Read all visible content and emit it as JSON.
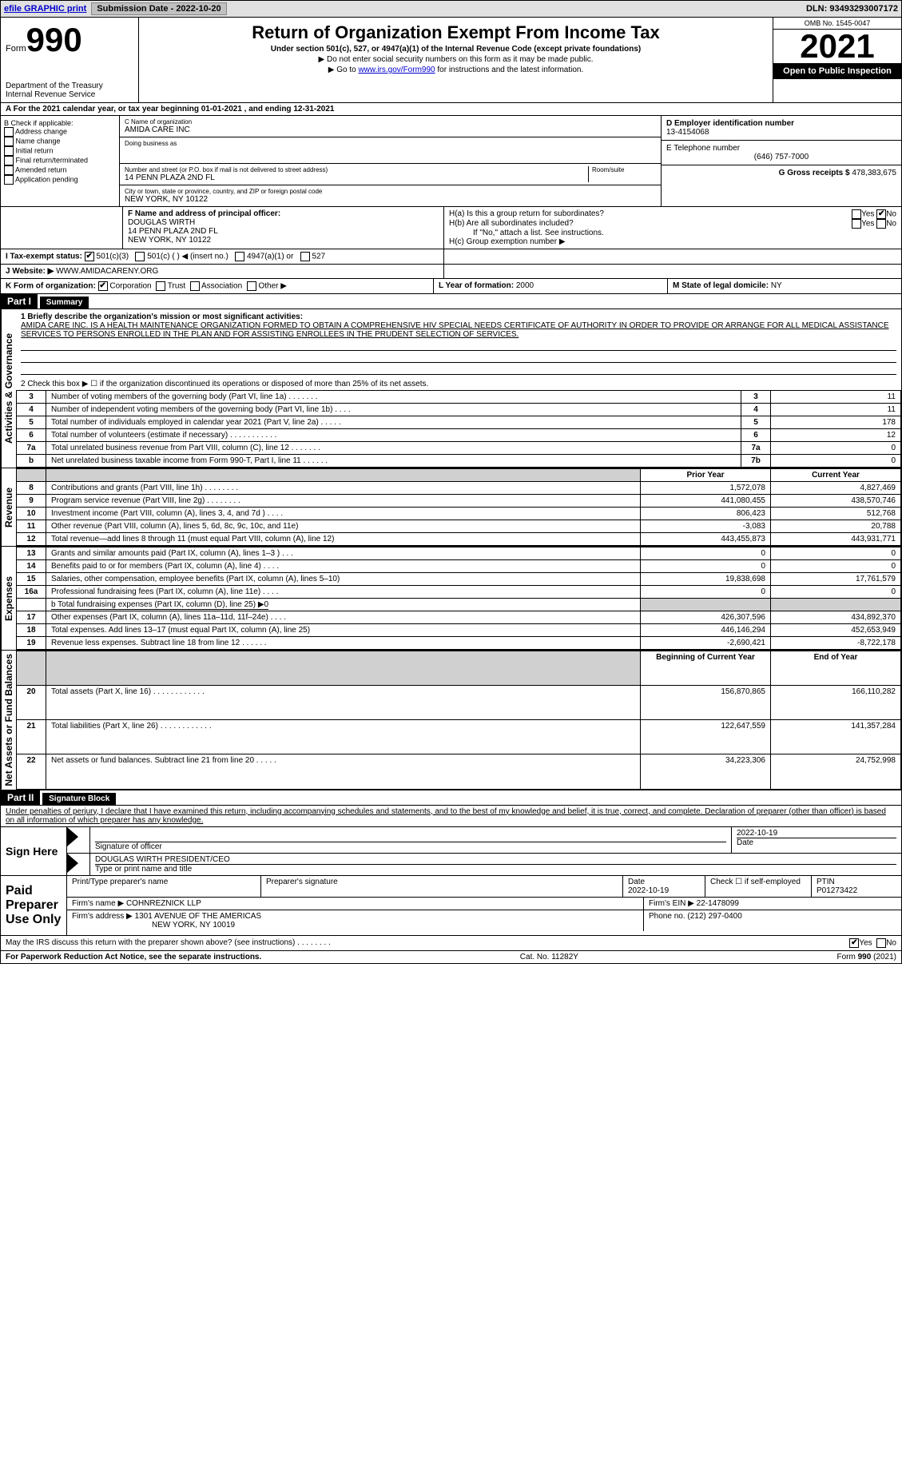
{
  "top_bar": {
    "efile_label": "efile GRAPHIC print",
    "submission_label": "Submission Date - 2022-10-20",
    "dln_label": "DLN: 93493293007172"
  },
  "header": {
    "form_word": "Form",
    "form_number": "990",
    "dept1": "Department of the Treasury",
    "dept2": "Internal Revenue Service",
    "title": "Return of Organization Exempt From Income Tax",
    "subtitle": "Under section 501(c), 527, or 4947(a)(1) of the Internal Revenue Code (except private foundations)",
    "note1": "▶ Do not enter social security numbers on this form as it may be made public.",
    "note2": "▶ Go to www.irs.gov/Form990 for instructions and the latest information.",
    "link_text": "www.irs.gov/Form990",
    "omb": "OMB No. 1545-0047",
    "year": "2021",
    "open_public": "Open to Public Inspection"
  },
  "period": {
    "a_label": "A For the 2021 calendar year, or tax year beginning 01-01-2021    , and ending 12-31-2021"
  },
  "box_b": {
    "header": "B Check if applicable:",
    "addr_change": "Address change",
    "name_change": "Name change",
    "initial": "Initial return",
    "final": "Final return/terminated",
    "amended": "Amended return",
    "app_pending": "Application pending"
  },
  "box_c": {
    "name_label": "C Name of organization",
    "name": "AMIDA CARE INC",
    "dba_label": "Doing business as",
    "dba": "",
    "street_label": "Number and street (or P.O. box if mail is not delivered to street address)",
    "room_label": "Room/suite",
    "street": "14 PENN PLAZA 2ND FL",
    "city_label": "City or town, state or province, country, and ZIP or foreign postal code",
    "city": "NEW YORK, NY  10122"
  },
  "box_d": {
    "label": "D Employer identification number",
    "value": "13-4154068"
  },
  "box_e": {
    "label": "E Telephone number",
    "value": "(646) 757-7000"
  },
  "box_g": {
    "label": "G Gross receipts $",
    "value": "478,383,675"
  },
  "box_f": {
    "label": "F  Name and address of principal officer:",
    "name": "DOUGLAS WIRTH",
    "line1": "14 PENN PLAZA 2ND FL",
    "line2": "NEW YORK, NY  10122"
  },
  "box_h": {
    "a_label": "H(a)  Is this a group return for subordinates?",
    "b_label": "H(b)  Are all subordinates included?",
    "b_note": "If \"No,\" attach a list. See instructions.",
    "c_label": "H(c)  Group exemption number ▶",
    "yes": "Yes",
    "no": "No"
  },
  "box_i": {
    "label": "I    Tax-exempt status:",
    "opt1": "501(c)(3)",
    "opt2": "501(c) (    ) ◀ (insert no.)",
    "opt3": "4947(a)(1) or",
    "opt4": "527"
  },
  "box_j": {
    "label": "J    Website: ▶",
    "value": "WWW.AMIDACARENY.ORG"
  },
  "box_k": {
    "label": "K Form of organization:",
    "corp": "Corporation",
    "trust": "Trust",
    "assoc": "Association",
    "other": "Other ▶"
  },
  "box_l": {
    "label": "L Year of formation:",
    "value": "2000"
  },
  "box_m": {
    "label": "M State of legal domicile:",
    "value": "NY"
  },
  "part1": {
    "header": "Part I",
    "title": "Summary"
  },
  "side_labels": {
    "activities": "Activities & Governance",
    "revenue": "Revenue",
    "expenses": "Expenses",
    "netassets": "Net Assets or Fund Balances"
  },
  "summary": {
    "line1_label": "1  Briefly describe the organization's mission or most significant activities:",
    "mission": "AMIDA CARE INC. IS A HEALTH MAINTENANCE ORGANIZATION FORMED TO OBTAIN A COMPREHENSIVE HIV SPECIAL NEEDS CERTIFICATE OF AUTHORITY IN ORDER TO PROVIDE OR ARRANGE FOR ALL MEDICAL ASSISTANCE SERVICES TO PERSONS ENROLLED IN THE PLAN AND FOR ASSISTING ENROLLEES IN THE PRUDENT SELECTION OF SERVICES.",
    "line2": "2   Check this box ▶ ☐  if the organization discontinued its operations or disposed of more than 25% of its net assets.",
    "rows_ag": [
      {
        "n": "3",
        "label": "Number of voting members of the governing body (Part VI, line 1a)   .    .    .    .    .    .    .",
        "box": "3",
        "val": "11"
      },
      {
        "n": "4",
        "label": "Number of independent voting members of the governing body (Part VI, line 1b)   .    .    .    .",
        "box": "4",
        "val": "11"
      },
      {
        "n": "5",
        "label": "Total number of individuals employed in calendar year 2021 (Part V, line 2a)   .    .    .    .    .",
        "box": "5",
        "val": "178"
      },
      {
        "n": "6",
        "label": "Total number of volunteers (estimate if necessary)   .    .    .    .    .    .    .    .    .    .    .",
        "box": "6",
        "val": "12"
      },
      {
        "n": "7a",
        "label": "Total unrelated business revenue from Part VIII, column (C), line 12   .    .    .    .    .    .    .",
        "box": "7a",
        "val": "0"
      },
      {
        "n": "b",
        "label": "Net unrelated business taxable income from Form 990-T, Part I, line 11    .    .    .    .    .    .",
        "box": "7b",
        "val": "0"
      }
    ],
    "col_prior": "Prior Year",
    "col_current": "Current Year",
    "rows_rev": [
      {
        "n": "8",
        "label": "Contributions and grants (Part VIII, line 1h)   .    .    .    .    .    .    .    .",
        "p": "1,572,078",
        "c": "4,827,469"
      },
      {
        "n": "9",
        "label": "Program service revenue (Part VIII, line 2g)    .    .    .    .    .    .    .    .",
        "p": "441,080,455",
        "c": "438,570,746"
      },
      {
        "n": "10",
        "label": "Investment income (Part VIII, column (A), lines 3, 4, and 7d )   .    .    .    .",
        "p": "806,423",
        "c": "512,768"
      },
      {
        "n": "11",
        "label": "Other revenue (Part VIII, column (A), lines 5, 6d, 8c, 9c, 10c, and 11e)",
        "p": "-3,083",
        "c": "20,788"
      },
      {
        "n": "12",
        "label": "Total revenue—add lines 8 through 11 (must equal Part VIII, column (A), line 12)",
        "p": "443,455,873",
        "c": "443,931,771"
      }
    ],
    "rows_exp": [
      {
        "n": "13",
        "label": "Grants and similar amounts paid (Part IX, column (A), lines 1–3 )   .    .    .",
        "p": "0",
        "c": "0"
      },
      {
        "n": "14",
        "label": "Benefits paid to or for members (Part IX, column (A), line 4)   .    .    .    .",
        "p": "0",
        "c": "0"
      },
      {
        "n": "15",
        "label": "Salaries, other compensation, employee benefits (Part IX, column (A), lines 5–10)",
        "p": "19,838,698",
        "c": "17,761,579"
      },
      {
        "n": "16a",
        "label": "Professional fundraising fees (Part IX, column (A), line 11e)   .    .    .    .",
        "p": "0",
        "c": "0"
      }
    ],
    "line16b": "b  Total fundraising expenses (Part IX, column (D), line 25) ▶0",
    "rows_exp2": [
      {
        "n": "17",
        "label": "Other expenses (Part IX, column (A), lines 11a–11d, 11f–24e)   .    .    .    .",
        "p": "426,307,596",
        "c": "434,892,370"
      },
      {
        "n": "18",
        "label": "Total expenses. Add lines 13–17 (must equal Part IX, column (A), line 25)",
        "p": "446,146,294",
        "c": "452,653,949"
      },
      {
        "n": "19",
        "label": "Revenue less expenses. Subtract line 18 from line 12   .    .    .    .    .    .",
        "p": "-2,690,421",
        "c": "-8,722,178"
      }
    ],
    "col_begin": "Beginning of Current Year",
    "col_end": "End of Year",
    "rows_net": [
      {
        "n": "20",
        "label": "Total assets (Part X, line 16)   .    .    .    .    .    .    .    .    .    .    .    .",
        "p": "156,870,865",
        "c": "166,110,282"
      },
      {
        "n": "21",
        "label": "Total liabilities (Part X, line 26)   .    .    .    .    .    .    .    .    .    .    .    .",
        "p": "122,647,559",
        "c": "141,357,284"
      },
      {
        "n": "22",
        "label": "Net assets or fund balances. Subtract line 21 from line 20   .    .    .    .    .",
        "p": "34,223,306",
        "c": "24,752,998"
      }
    ]
  },
  "part2": {
    "header": "Part II",
    "title": "Signature Block"
  },
  "penalty": "Under penalties of perjury, I declare that I have examined this return, including accompanying schedules and statements, and to the best of my knowledge and belief, it is true, correct, and complete. Declaration of preparer (other than officer) is based on all information of which preparer has any knowledge.",
  "sign": {
    "here": "Sign Here",
    "sig_label": "Signature of officer",
    "date": "2022-10-19",
    "date_label": "Date",
    "name": "DOUGLAS WIRTH  PRESIDENT/CEO",
    "name_label": "Type or print name and title"
  },
  "paid": {
    "title": "Paid Preparer Use Only",
    "print_label": "Print/Type preparer's name",
    "sig_label": "Preparer's signature",
    "date_label": "Date",
    "date": "2022-10-19",
    "check_label": "Check ☐ if self-employed",
    "ptin_label": "PTIN",
    "ptin": "P01273422",
    "firm_name_label": "Firm's name      ▶",
    "firm_name": "COHNREZNICK LLP",
    "firm_ein_label": "Firm's EIN ▶",
    "firm_ein": "22-1478099",
    "firm_addr_label": "Firm's address ▶",
    "firm_addr1": "1301 AVENUE OF THE AMERICAS",
    "firm_addr2": "NEW YORK, NY  10019",
    "phone_label": "Phone no.",
    "phone": "(212) 297-0400"
  },
  "discuss": {
    "label": "May the IRS discuss this return with the preparer shown above? (see instructions)   .    .    .    .    .    .    .    .",
    "yes": "Yes",
    "no": "No"
  },
  "footer": {
    "left": "For Paperwork Reduction Act Notice, see the separate instructions.",
    "center": "Cat. No. 11282Y",
    "right_form": "Form 990 (2021)",
    "right_form_bold": "990"
  },
  "colors": {
    "link": "#0000cc",
    "header_bg": "#000000",
    "header_fg": "#ffffff",
    "shaded": "#d0d0d0",
    "topbar_bg": "#e0e0e0",
    "check_blue": "#1a5fb4"
  }
}
